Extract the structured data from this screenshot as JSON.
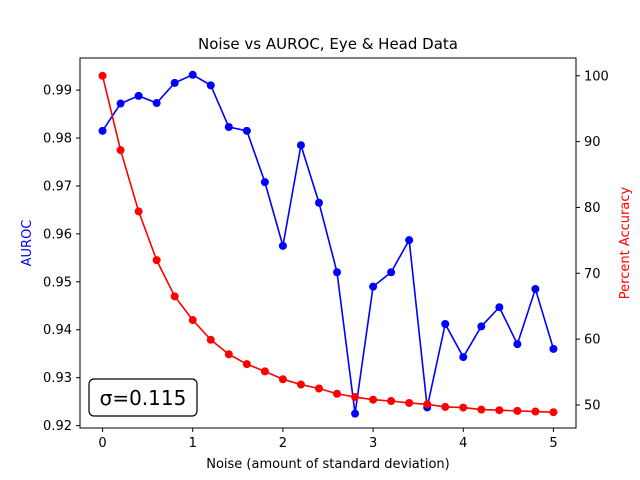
{
  "chart_data": {
    "type": "line",
    "title": "Noise vs AUROC, Eye & Head Data",
    "xlabel": "Noise (amount of standard deviation)",
    "ylabel_left": "AUROC",
    "ylabel_right": "Percent Accuracy",
    "annotation": "σ=0.115",
    "annotation_position": "bottom-left",
    "grid": false,
    "x": [
      0,
      0.2,
      0.4,
      0.6,
      0.8,
      1.0,
      1.2,
      1.4,
      1.6,
      1.8,
      2.0,
      2.2,
      2.4,
      2.6,
      2.8,
      3.0,
      3.2,
      3.4,
      3.6,
      3.8,
      4.0,
      4.2,
      4.4,
      4.6,
      4.8,
      5.0
    ],
    "xlim": [
      -0.25,
      5.25
    ],
    "xticks": [
      0,
      1,
      2,
      3,
      4,
      5
    ],
    "series": [
      {
        "axis": "left",
        "color": "#0000ff",
        "values": [
          0.9815,
          0.9872,
          0.9888,
          0.9873,
          0.9915,
          0.9932,
          0.991,
          0.9823,
          0.9815,
          0.9708,
          0.9575,
          0.9785,
          0.9665,
          0.952,
          0.9225,
          0.949,
          0.952,
          0.9587,
          0.9238,
          0.9412,
          0.9343,
          0.9407,
          0.9447,
          0.937,
          0.9485,
          0.936
        ]
      },
      {
        "axis": "right",
        "color": "#ff0000",
        "values": [
          100.0,
          88.7,
          79.4,
          72.0,
          66.5,
          62.9,
          59.9,
          57.7,
          56.2,
          55.1,
          53.9,
          53.1,
          52.5,
          51.7,
          51.2,
          50.8,
          50.6,
          50.3,
          50.1,
          49.7,
          49.6,
          49.3,
          49.2,
          49.1,
          49.0,
          48.9
        ]
      }
    ],
    "ylim_left": [
      0.9195,
      0.9967
    ],
    "yticks_left": [
      0.92,
      0.93,
      0.94,
      0.95,
      0.96,
      0.97,
      0.98,
      0.99
    ],
    "ylim_right": [
      46.5,
      102.7
    ],
    "yticks_right": [
      50,
      60,
      70,
      80,
      90,
      100
    ],
    "colors": {
      "left_label": "#0000ff",
      "right_label": "#ff0000"
    }
  }
}
